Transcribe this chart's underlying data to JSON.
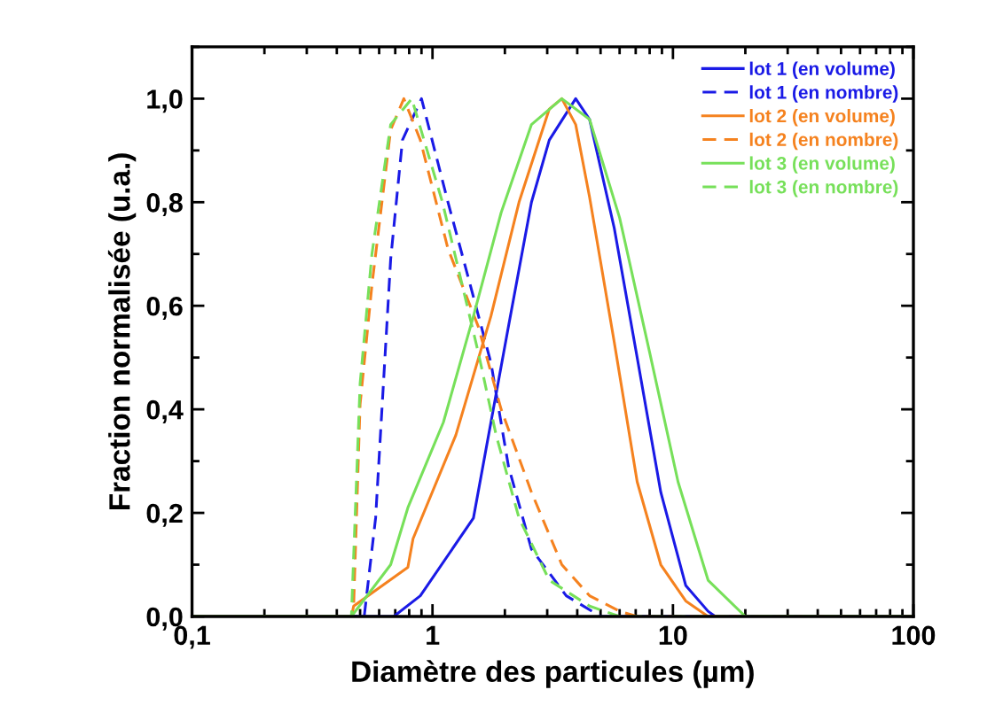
{
  "chart_data": {
    "type": "line",
    "xlabel": "Diamètre des particules (µm)",
    "ylabel": "Fraction normalisée (u.a.)",
    "log": "x",
    "xlim": [
      0.1,
      100
    ],
    "xticks": [
      {
        "value": 0.1,
        "label": "0,1"
      },
      1,
      10,
      100
    ],
    "ylim": [
      0,
      1.1
    ],
    "yticks": [
      {
        "value": 0,
        "label": "0,0"
      },
      {
        "value": 0.2,
        "label": "0,2"
      },
      {
        "value": 0.4,
        "label": "0,4"
      },
      {
        "value": 0.6,
        "label": "0,6"
      },
      {
        "value": 0.8,
        "label": "0,8"
      },
      {
        "value": 1.0,
        "label": "1,0"
      }
    ],
    "grid": false,
    "legend": "top right",
    "marker": "none",
    "series": [
      {
        "name": "lot 1 (en volume)",
        "color": "#1a1ae6",
        "line_style": "solid",
        "x": [
          0.1,
          0.69,
          0.89,
          1.48,
          1.75,
          2.07,
          2.58,
          3.06,
          3.94,
          4.5,
          5.7,
          7.1,
          8.9,
          11.3,
          14,
          15,
          100
        ],
        "values": [
          0,
          0,
          0.04,
          0.19,
          0.375,
          0.56,
          0.8,
          0.92,
          1.0,
          0.96,
          0.75,
          0.5,
          0.24,
          0.06,
          0.01,
          0,
          0
        ]
      },
      {
        "name": "lot 1 (en nombre)",
        "color": "#1a1ae6",
        "line_style": "dashed",
        "x": [
          0.1,
          0.52,
          0.58,
          0.67,
          0.75,
          0.9,
          1.16,
          1.38,
          1.75,
          2.07,
          2.58,
          3.6,
          5,
          100
        ],
        "values": [
          0,
          0,
          0.19,
          0.69,
          0.92,
          1.0,
          0.8,
          0.67,
          0.49,
          0.29,
          0.13,
          0.04,
          0,
          0
        ]
      },
      {
        "name": "lot 2 (en volume)",
        "color": "#f5821f",
        "line_style": "solid",
        "x": [
          0.1,
          0.46,
          0.47,
          0.79,
          0.83,
          1.25,
          1.75,
          2.29,
          3.06,
          3.45,
          3.94,
          4.5,
          5.7,
          7.1,
          8.9,
          11.3,
          14,
          100
        ],
        "values": [
          0,
          0,
          0.02,
          0.095,
          0.15,
          0.35,
          0.58,
          0.8,
          0.98,
          1.0,
          0.95,
          0.81,
          0.53,
          0.26,
          0.1,
          0.03,
          0,
          0
        ]
      },
      {
        "name": "lot 2 (en nombre)",
        "color": "#f5821f",
        "line_style": "dashed",
        "x": [
          0.1,
          0.46,
          0.47,
          0.5,
          0.56,
          0.67,
          0.76,
          0.89,
          1.16,
          1.55,
          1.93,
          2.58,
          3.45,
          4.5,
          6,
          7.1,
          100
        ],
        "values": [
          0,
          0,
          0.02,
          0.41,
          0.64,
          0.94,
          1.0,
          0.92,
          0.71,
          0.56,
          0.4,
          0.24,
          0.1,
          0.04,
          0.01,
          0,
          0
        ]
      },
      {
        "name": "lot 3 (en volume)",
        "color": "#77e05a",
        "line_style": "solid",
        "x": [
          0.1,
          0.46,
          0.67,
          0.79,
          1.11,
          1.48,
          1.93,
          2.58,
          3.45,
          4.5,
          6,
          8,
          10.5,
          14,
          20,
          100
        ],
        "values": [
          0,
          0,
          0.1,
          0.21,
          0.375,
          0.58,
          0.78,
          0.95,
          1.0,
          0.96,
          0.77,
          0.51,
          0.26,
          0.07,
          0,
          0
        ]
      },
      {
        "name": "lot 3 (en nombre)",
        "color": "#77e05a",
        "line_style": "dashed",
        "x": [
          0.1,
          0.46,
          0.5,
          0.56,
          0.67,
          0.82,
          1.1,
          1.55,
          1.84,
          2.29,
          3.06,
          4.5,
          6,
          100
        ],
        "values": [
          0,
          0,
          0.45,
          0.7,
          0.95,
          1.0,
          0.8,
          0.51,
          0.35,
          0.19,
          0.07,
          0.02,
          0,
          0
        ]
      }
    ]
  }
}
